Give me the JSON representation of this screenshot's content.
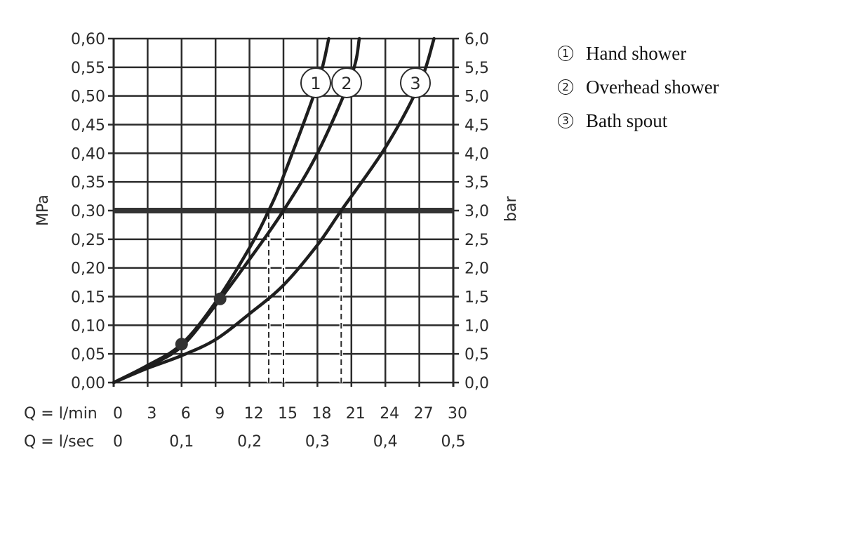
{
  "chart_data": {
    "type": "line",
    "title": "",
    "xlabel": "Q = l/min",
    "xlabel_secondary": "Q = l/sec",
    "ylabel": "MPa",
    "ylabel_secondary": "bar",
    "xlim": [
      0,
      30
    ],
    "ylim": [
      0,
      0.6
    ],
    "grid": true,
    "x_ticks": [
      "0",
      "3",
      "6",
      "9",
      "12",
      "15",
      "18",
      "21",
      "24",
      "27",
      "30"
    ],
    "x_ticks_secondary": [
      "0",
      "0,1",
      "0,2",
      "0,3",
      "0,4",
      "0,5"
    ],
    "y_ticks": [
      "0,00",
      "0,05",
      "0,10",
      "0,15",
      "0,20",
      "0,25",
      "0,30",
      "0,35",
      "0,40",
      "0,45",
      "0,50",
      "0,55",
      "0,60"
    ],
    "y_ticks_secondary": [
      "0,0",
      "0,5",
      "1,0",
      "1,5",
      "2,0",
      "2,5",
      "3,0",
      "3,5",
      "4,0",
      "4,5",
      "5,0",
      "5,5",
      "6,0"
    ],
    "reference_line": {
      "y": 0.3,
      "label": "0,30 MPa / 3,0 bar"
    },
    "series": [
      {
        "name": "Hand shower",
        "marker": "1",
        "x": [
          0,
          3,
          6,
          9,
          12,
          13.7,
          15,
          18,
          19
        ],
        "y": [
          0,
          0.03,
          0.067,
          0.14,
          0.235,
          0.3,
          0.36,
          0.52,
          0.6
        ]
      },
      {
        "name": "Overhead shower",
        "marker": "2",
        "x": [
          0,
          3,
          6,
          9,
          12,
          15,
          18,
          21,
          21.7
        ],
        "y": [
          0,
          0.028,
          0.063,
          0.135,
          0.215,
          0.3,
          0.4,
          0.535,
          0.6
        ]
      },
      {
        "name": "Bath spout",
        "marker": "3",
        "x": [
          0,
          3,
          6,
          9,
          12,
          15,
          18,
          20.1,
          24,
          27,
          28.3
        ],
        "y": [
          0,
          0.025,
          0.047,
          0.075,
          0.12,
          0.17,
          0.24,
          0.3,
          0.41,
          0.52,
          0.6
        ]
      }
    ],
    "points": [
      {
        "x": 6,
        "y": 0.067
      },
      {
        "x": 9.4,
        "y": 0.146
      }
    ],
    "dashed_drops": [
      13.7,
      15.0,
      20.1
    ],
    "legend_position": "right"
  },
  "legend": {
    "items": [
      {
        "num": "1",
        "label": "Hand shower"
      },
      {
        "num": "2",
        "label": "Overhead shower"
      },
      {
        "num": "3",
        "label": "Bath spout"
      }
    ]
  }
}
